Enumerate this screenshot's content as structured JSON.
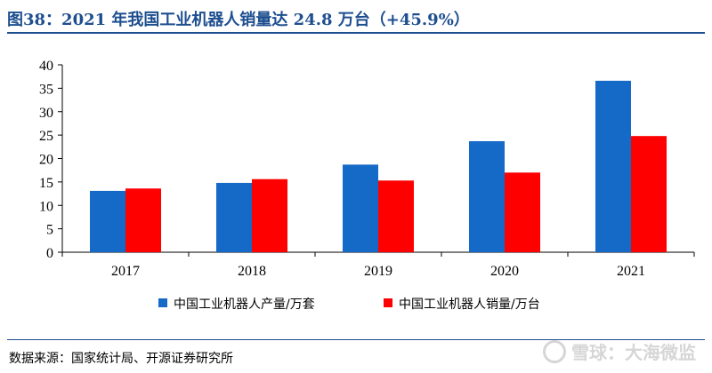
{
  "title": "图38：2021 年我国工业机器人销量达 24.8 万台（+45.9%）",
  "source": "数据来源：国家统计局、开源证券研究所",
  "watermark": "雪球：大海微监",
  "colors": {
    "accent": "#1d4e8f",
    "series1": "#1569c7",
    "series2": "#ff0000"
  },
  "chart_data": {
    "type": "bar",
    "categories": [
      "2017",
      "2018",
      "2019",
      "2020",
      "2021"
    ],
    "series": [
      {
        "name": "中国工业机器人产量/万套",
        "color": "#1569c7",
        "values": [
          13.1,
          14.8,
          18.7,
          23.7,
          36.6
        ]
      },
      {
        "name": "中国工业机器人销量/万台",
        "color": "#ff0000",
        "values": [
          13.6,
          15.6,
          15.3,
          17.0,
          24.8
        ]
      }
    ],
    "ylim": [
      0,
      40
    ],
    "yticks": [
      0,
      5,
      10,
      15,
      20,
      25,
      30,
      35,
      40
    ],
    "grid": false,
    "legend_position": "bottom"
  }
}
